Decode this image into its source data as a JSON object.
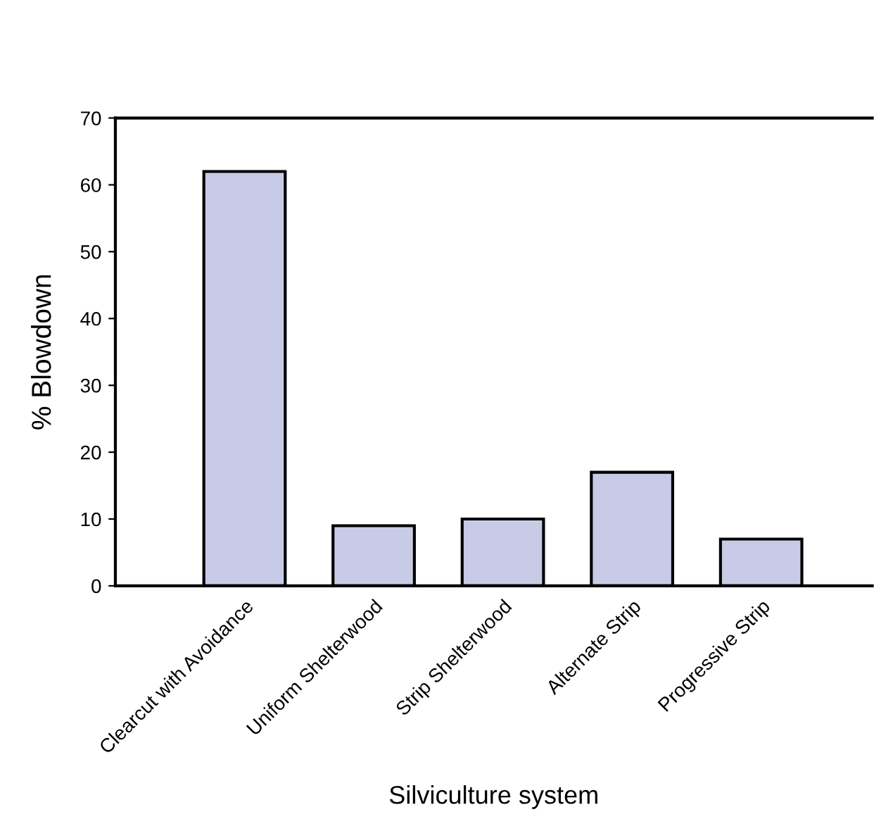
{
  "chart_data": {
    "type": "bar",
    "categories": [
      "Clearcut with Avoidance",
      "Uniform Shelterwood",
      "Strip Shelterwood",
      "Alternate Strip",
      "Progressive Strip"
    ],
    "values": [
      62,
      9,
      10,
      17,
      7
    ],
    "color": "#c8cbe6",
    "xlabel": "Silviculture system",
    "ylabel": "% Blowdown",
    "ylim": [
      0,
      70
    ],
    "yticks": [
      0,
      10,
      20,
      30,
      40,
      50,
      60,
      70
    ],
    "grid": false,
    "legend": false
  }
}
